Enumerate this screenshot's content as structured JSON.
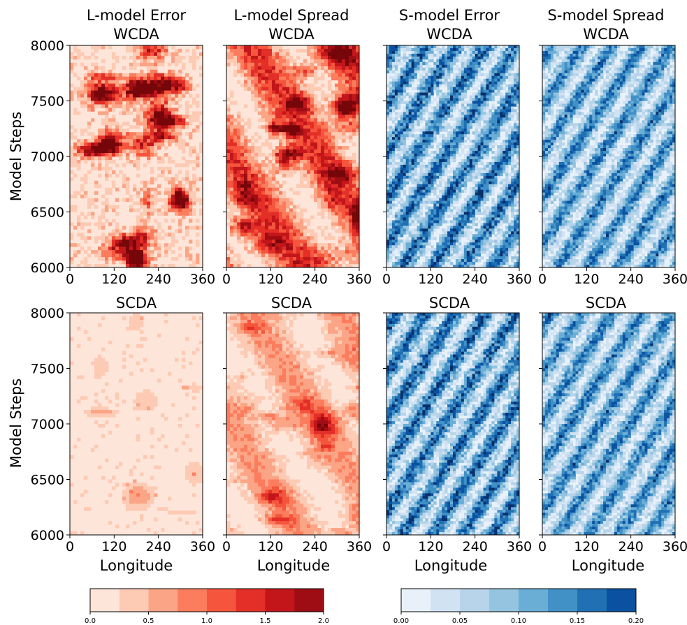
{
  "chart_data": {
    "type": "heatmap",
    "grid": "off",
    "rows": [
      {
        "ylabel": "Model Steps",
        "xlabel": "",
        "panels": [
          {
            "title_line1": "L-model Error",
            "title_line2": "WCDA",
            "colormap": "Reds",
            "pattern": "patchy",
            "intensity": 0.62
          },
          {
            "title_line1": "L-model Spread",
            "title_line2": "WCDA",
            "colormap": "Reds",
            "pattern": "bands",
            "intensity": 0.55
          },
          {
            "title_line1": "S-model Error",
            "title_line2": "WCDA",
            "colormap": "Blues",
            "pattern": "stripes",
            "intensity": 0.62
          },
          {
            "title_line1": "S-model Spread",
            "title_line2": "WCDA",
            "colormap": "Blues",
            "pattern": "stripes",
            "intensity": 0.55
          }
        ]
      },
      {
        "ylabel": "Model Steps",
        "xlabel": "Longitude",
        "panels": [
          {
            "title_line1": "",
            "title_line2": "SCDA",
            "colormap": "Reds",
            "pattern": "sparse",
            "intensity": 0.2
          },
          {
            "title_line1": "",
            "title_line2": "SCDA",
            "colormap": "Reds",
            "pattern": "bands",
            "intensity": 0.3
          },
          {
            "title_line1": "",
            "title_line2": "SCDA",
            "colormap": "Blues",
            "pattern": "stripes",
            "intensity": 0.62
          },
          {
            "title_line1": "",
            "title_line2": "SCDA",
            "colormap": "Blues",
            "pattern": "stripes",
            "intensity": 0.55
          }
        ]
      }
    ],
    "x": {
      "range": [
        0,
        360
      ],
      "ticks": [
        "0",
        "120",
        "240",
        "360"
      ]
    },
    "y": {
      "range": [
        6000,
        8000
      ],
      "ticks": [
        "6000",
        "6500",
        "7000",
        "7500",
        "8000"
      ]
    },
    "colorbars": [
      {
        "name": "Reds",
        "range": [
          0.0,
          2.0
        ],
        "ticks": [
          "0.0",
          "0.5",
          "1.0",
          "1.5",
          "2.0"
        ],
        "colors": [
          "#fee5d9",
          "#fdcab4",
          "#fca486",
          "#fb7d5d",
          "#f5553c",
          "#e32f27",
          "#c2161b",
          "#9e0d14",
          "#760609"
        ]
      },
      {
        "name": "Blues",
        "range": [
          0.0,
          0.2
        ],
        "ticks": [
          "0.00",
          "0.05",
          "0.10",
          "0.15",
          "0.20"
        ],
        "colors": [
          "#e8f1fa",
          "#d1e2f3",
          "#b7d4ea",
          "#94c4df",
          "#6aaed6",
          "#4191c6",
          "#2070b4",
          "#0a52a1",
          "#08306b"
        ]
      }
    ]
  }
}
